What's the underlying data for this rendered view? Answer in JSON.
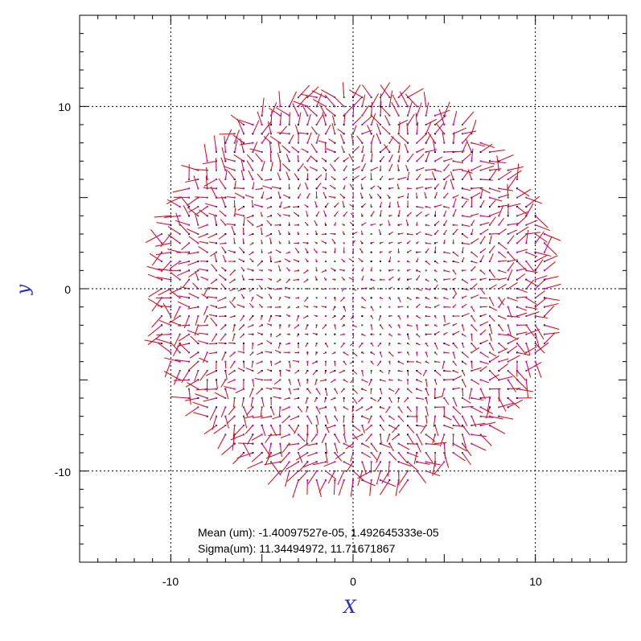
{
  "chart_data": {
    "type": "scatter",
    "title": "",
    "xlabel": "X",
    "ylabel": "y",
    "xlim": [
      -15,
      15
    ],
    "ylim": [
      -15,
      15
    ],
    "x_ticks": [
      -10,
      0,
      10
    ],
    "y_ticks": [
      -10,
      0,
      10
    ],
    "x_tick_labels": [
      "-10",
      "0",
      "10"
    ],
    "y_tick_labels": [
      "-10",
      "0",
      "10"
    ],
    "grid": "dotted at -10, 0, 10",
    "grid_step": 0.5,
    "disk_radius": 11,
    "vector_scale": 1.4,
    "colors": {
      "vector": "#e00000",
      "point_a": "#d000d0",
      "point_b": "#008000",
      "point_c": "#000000",
      "axis_title": "#1f2bd1"
    },
    "annotations": {
      "mean": "Mean (um): -1.40097527e-05, 1.492645333e-05",
      "sigma": "Sigma(um): 11.34494972, 11.71671867"
    }
  }
}
